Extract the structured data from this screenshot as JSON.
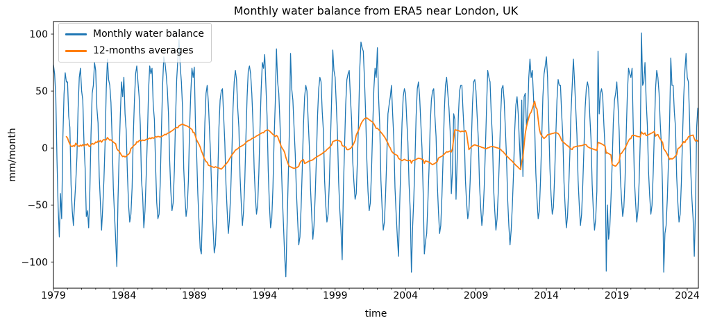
{
  "figure": {
    "background": "#ffffff",
    "spine_color": "#000000",
    "tick_color": "#000000"
  },
  "chart_data": {
    "type": "line",
    "title": "Monthly water balance from ERA5 near London, UK",
    "xlabel": "time",
    "ylabel": "mm/month",
    "xlim": [
      1979.0,
      2024.79
    ],
    "ylim": [
      -123,
      111
    ],
    "grid": false,
    "legend": {
      "position": "upper left",
      "frame": true
    },
    "x_ticks": {
      "major": [
        {
          "value": 1979,
          "label": "1979"
        },
        {
          "value": 1984,
          "label": "1984"
        },
        {
          "value": 1989,
          "label": "1989"
        },
        {
          "value": 1994,
          "label": "1994"
        },
        {
          "value": 1999,
          "label": "1999"
        },
        {
          "value": 2004,
          "label": "2004"
        },
        {
          "value": 2009,
          "label": "2009"
        },
        {
          "value": 2014,
          "label": "2014"
        },
        {
          "value": 2019,
          "label": "2019"
        },
        {
          "value": 2024,
          "label": "2024"
        }
      ],
      "minor_step_years": 1
    },
    "y_ticks": [
      {
        "value": -100,
        "label": "−100"
      },
      {
        "value": -50,
        "label": "−50"
      },
      {
        "value": 0,
        "label": "0"
      },
      {
        "value": 50,
        "label": "50"
      },
      {
        "value": 100,
        "label": "100"
      }
    ],
    "series": [
      {
        "name": "Monthly water balance",
        "color": "#1f77b4",
        "line_width": 1.3,
        "cadence": "monthly",
        "start_year": 1979,
        "start_month": 1,
        "values": [
          73,
          65,
          45,
          -10,
          -52,
          -78,
          -40,
          -62,
          8,
          47,
          66,
          58,
          58,
          28,
          18,
          -32,
          -55,
          -68,
          -48,
          -30,
          -8,
          35,
          62,
          70,
          50,
          42,
          5,
          -18,
          -60,
          -55,
          -70,
          -38,
          12,
          48,
          55,
          75,
          68,
          35,
          22,
          -25,
          -48,
          -72,
          -52,
          -28,
          5,
          52,
          78,
          60,
          55,
          40,
          8,
          -35,
          -58,
          -80,
          -104,
          -45,
          -5,
          30,
          58,
          45,
          62,
          30,
          15,
          -22,
          -50,
          -65,
          -58,
          -35,
          10,
          42,
          65,
          72,
          58,
          45,
          20,
          -28,
          -42,
          -70,
          -55,
          -25,
          8,
          50,
          72,
          65,
          70,
          38,
          25,
          -15,
          -48,
          -62,
          -58,
          -30,
          15,
          55,
          80,
          75,
          65,
          52,
          30,
          -10,
          -38,
          -55,
          -48,
          -20,
          25,
          60,
          78,
          95,
          72,
          58,
          35,
          -18,
          -42,
          -60,
          -52,
          -28,
          18,
          48,
          70,
          62,
          71,
          20,
          -5,
          -40,
          -65,
          -88,
          -93,
          -55,
          -20,
          22,
          48,
          55,
          40,
          15,
          -10,
          -45,
          -70,
          -92,
          -85,
          -60,
          -25,
          18,
          42,
          50,
          52,
          28,
          5,
          -32,
          -55,
          -75,
          -62,
          -40,
          -5,
          35,
          58,
          68,
          60,
          35,
          18,
          -25,
          -48,
          -68,
          -55,
          -30,
          10,
          45,
          68,
          72,
          65,
          48,
          22,
          -18,
          -42,
          -58,
          -50,
          -22,
          18,
          52,
          75,
          70,
          82,
          55,
          28,
          -20,
          -50,
          -70,
          -62,
          -35,
          8,
          40,
          87,
          58,
          48,
          22,
          -8,
          -42,
          -68,
          -95,
          -113,
          -70,
          -28,
          15,
          83,
          52,
          42,
          18,
          -5,
          -38,
          -62,
          -85,
          -78,
          -52,
          -18,
          20,
          45,
          55,
          50,
          25,
          2,
          -35,
          -58,
          -80,
          -68,
          -42,
          -10,
          28,
          52,
          62,
          58,
          32,
          15,
          -28,
          -50,
          -65,
          -58,
          -32,
          5,
          42,
          86,
          68,
          62,
          38,
          12,
          -30,
          -55,
          -72,
          -98,
          -38,
          0,
          38,
          60,
          65,
          68,
          45,
          25,
          -12,
          -30,
          -45,
          -40,
          -10,
          25,
          70,
          93,
          88,
          85,
          60,
          30,
          -10,
          -38,
          -55,
          -48,
          -20,
          18,
          52,
          70,
          62,
          88,
          45,
          20,
          -28,
          -52,
          -72,
          -65,
          -40,
          -8,
          30,
          38,
          45,
          55,
          30,
          8,
          -35,
          -58,
          -78,
          -95,
          -50,
          -15,
          22,
          45,
          52,
          48,
          25,
          5,
          -32,
          -55,
          -109,
          -70,
          -45,
          -12,
          28,
          52,
          58,
          45,
          22,
          0,
          -38,
          -93,
          -82,
          -75,
          -48,
          -18,
          20,
          42,
          50,
          52,
          28,
          10,
          -30,
          -55,
          -75,
          -68,
          -42,
          -8,
          32,
          55,
          62,
          48,
          35,
          15,
          -40,
          -20,
          30,
          25,
          -45,
          -10,
          28,
          50,
          55,
          55,
          32,
          12,
          -28,
          -48,
          -62,
          -55,
          -30,
          2,
          38,
          58,
          60,
          50,
          28,
          8,
          -32,
          -52,
          -68,
          -58,
          -35,
          -2,
          35,
          68,
          62,
          58,
          30,
          10,
          -35,
          -55,
          -72,
          -62,
          -38,
          -8,
          28,
          52,
          55,
          42,
          18,
          -8,
          -45,
          -68,
          -85,
          -72,
          -50,
          -22,
          15,
          38,
          45,
          30,
          5,
          -18,
          42,
          -25,
          45,
          48,
          20,
          28,
          62,
          78,
          62,
          68,
          45,
          20,
          -22,
          -45,
          -62,
          -55,
          -28,
          8,
          45,
          65,
          72,
          80,
          62,
          22,
          -18,
          -42,
          -58,
          -52,
          -25,
          10,
          42,
          60,
          55,
          55,
          30,
          10,
          -30,
          -52,
          -70,
          -60,
          -35,
          -5,
          32,
          55,
          78,
          58,
          35,
          12,
          -28,
          -50,
          -68,
          -58,
          -32,
          0,
          35,
          52,
          58,
          52,
          28,
          8,
          -32,
          -55,
          -72,
          -62,
          -38,
          85,
          30,
          48,
          52,
          45,
          20,
          0,
          -108,
          -50,
          -80,
          -70,
          -45,
          -15,
          22,
          42,
          48,
          58,
          38,
          15,
          -25,
          -45,
          -60,
          -52,
          -28,
          12,
          48,
          70,
          65,
          62,
          70,
          18,
          -28,
          -48,
          -65,
          -55,
          -30,
          8,
          101,
          55,
          58,
          75,
          42,
          20,
          -20,
          -42,
          -58,
          -50,
          -22,
          15,
          52,
          68,
          62,
          48,
          22,
          2,
          -38,
          -109,
          -75,
          -68,
          -45,
          -12,
          25,
          79,
          55,
          55,
          32,
          18,
          -25,
          -48,
          -65,
          -58,
          -30,
          10,
          45,
          68,
          83,
          62,
          58,
          25,
          -20,
          -45,
          -62,
          -95,
          -55,
          18,
          35
        ]
      },
      {
        "name": "12-months averages",
        "color": "#ff7f0e",
        "line_width": 1.8,
        "derived_from_series": 0,
        "window_months": 12
      }
    ]
  }
}
